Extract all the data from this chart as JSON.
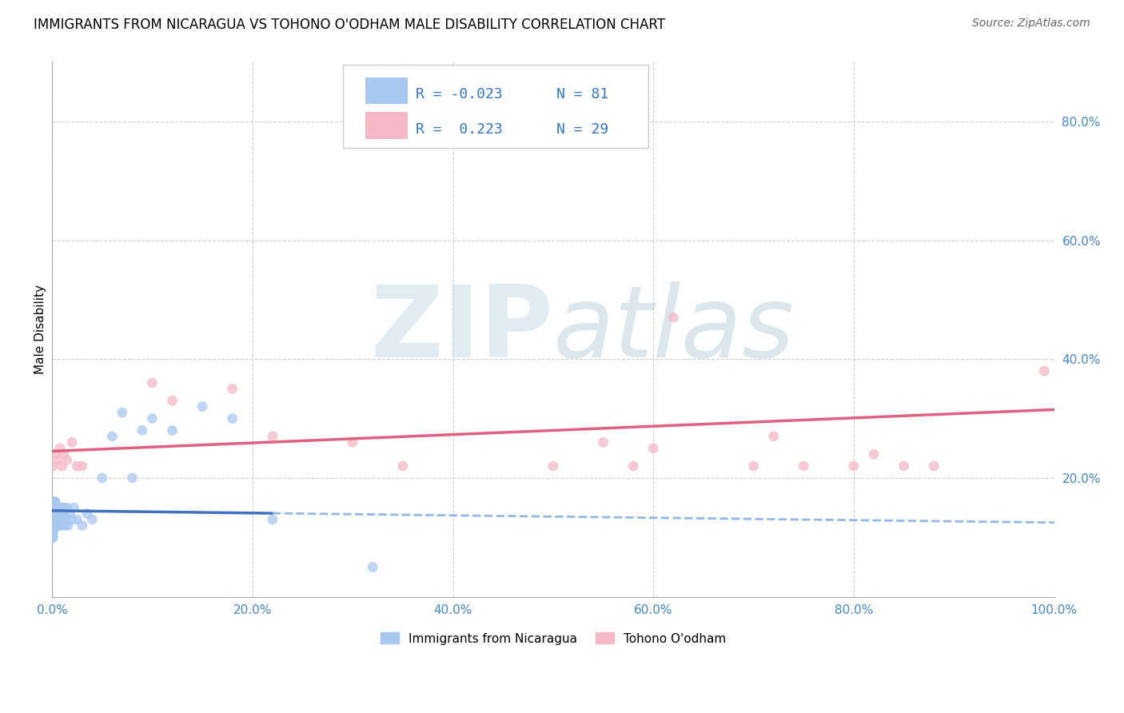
{
  "title": "IMMIGRANTS FROM NICARAGUA VS TOHONO O'ODHAM MALE DISABILITY CORRELATION CHART",
  "source": "Source: ZipAtlas.com",
  "ylabel": "Male Disability",
  "xlim": [
    0,
    1.0
  ],
  "ylim": [
    0,
    0.9
  ],
  "xticks": [
    0.0,
    0.2,
    0.4,
    0.6,
    0.8,
    1.0
  ],
  "yticks": [
    0.0,
    0.2,
    0.4,
    0.6,
    0.8
  ],
  "xticklabels": [
    "0.0%",
    "20.0%",
    "40.0%",
    "60.0%",
    "80.0%",
    "100.0%"
  ],
  "yticklabels": [
    "",
    "20.0%",
    "40.0%",
    "60.0%",
    "80.0%"
  ],
  "blue_color": "#a8c8f0",
  "pink_color": "#f5b8c8",
  "blue_line_color": "#4070c0",
  "pink_line_color": "#e06080",
  "blue_line_color_dash": "#90b8e8",
  "watermark_color": "#d8e8f0",
  "blue_x": [
    0.001,
    0.002,
    0.001,
    0.003,
    0.002,
    0.001,
    0.002,
    0.003,
    0.001,
    0.002,
    0.001,
    0.002,
    0.001,
    0.003,
    0.001,
    0.002,
    0.001,
    0.002,
    0.001,
    0.003,
    0.001,
    0.002,
    0.001,
    0.002,
    0.001,
    0.002,
    0.001,
    0.003,
    0.002,
    0.001,
    0.004,
    0.003,
    0.002,
    0.004,
    0.003,
    0.005,
    0.004,
    0.003,
    0.006,
    0.005,
    0.004,
    0.006,
    0.005,
    0.007,
    0.006,
    0.008,
    0.007,
    0.006,
    0.008,
    0.007,
    0.009,
    0.008,
    0.01,
    0.009,
    0.011,
    0.01,
    0.012,
    0.011,
    0.013,
    0.012,
    0.015,
    0.014,
    0.016,
    0.018,
    0.02,
    0.022,
    0.025,
    0.03,
    0.035,
    0.04,
    0.05,
    0.06,
    0.07,
    0.08,
    0.09,
    0.1,
    0.12,
    0.15,
    0.18,
    0.22,
    0.32
  ],
  "blue_y": [
    0.13,
    0.15,
    0.11,
    0.16,
    0.14,
    0.12,
    0.13,
    0.15,
    0.1,
    0.14,
    0.12,
    0.16,
    0.11,
    0.13,
    0.15,
    0.12,
    0.14,
    0.13,
    0.11,
    0.15,
    0.14,
    0.12,
    0.13,
    0.15,
    0.11,
    0.14,
    0.12,
    0.16,
    0.13,
    0.1,
    0.14,
    0.13,
    0.15,
    0.12,
    0.14,
    0.13,
    0.15,
    0.12,
    0.14,
    0.13,
    0.15,
    0.14,
    0.13,
    0.15,
    0.12,
    0.14,
    0.13,
    0.15,
    0.14,
    0.12,
    0.14,
    0.13,
    0.15,
    0.12,
    0.14,
    0.13,
    0.15,
    0.14,
    0.12,
    0.14,
    0.15,
    0.13,
    0.12,
    0.14,
    0.13,
    0.15,
    0.13,
    0.12,
    0.14,
    0.13,
    0.2,
    0.27,
    0.31,
    0.2,
    0.28,
    0.3,
    0.28,
    0.32,
    0.3,
    0.13,
    0.05
  ],
  "pink_x": [
    0.001,
    0.003,
    0.005,
    0.008,
    0.01,
    0.012,
    0.015,
    0.02,
    0.025,
    0.03,
    0.1,
    0.12,
    0.18,
    0.22,
    0.3,
    0.35,
    0.5,
    0.55,
    0.58,
    0.6,
    0.62,
    0.7,
    0.72,
    0.75,
    0.8,
    0.82,
    0.85,
    0.88,
    0.99
  ],
  "pink_y": [
    0.22,
    0.24,
    0.23,
    0.25,
    0.22,
    0.24,
    0.23,
    0.26,
    0.22,
    0.22,
    0.36,
    0.33,
    0.35,
    0.27,
    0.26,
    0.22,
    0.22,
    0.26,
    0.22,
    0.25,
    0.47,
    0.22,
    0.27,
    0.22,
    0.22,
    0.24,
    0.22,
    0.22,
    0.38
  ],
  "blue_line_y0": 0.145,
  "blue_line_y1": 0.125,
  "blue_line_solid_x1": 0.22,
  "pink_line_y0": 0.245,
  "pink_line_y1": 0.315
}
